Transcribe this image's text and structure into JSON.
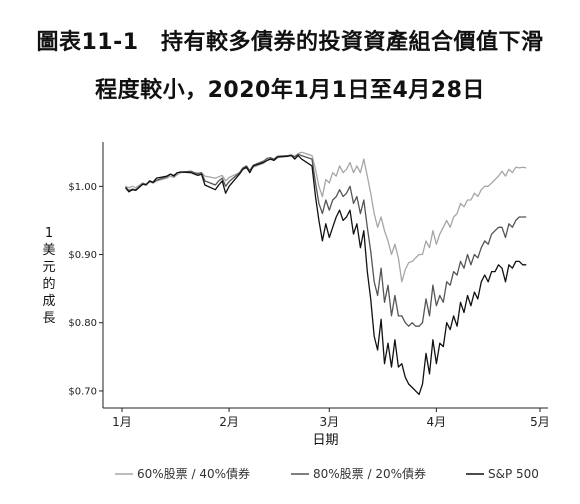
{
  "title": {
    "line1": "圖表11-1　持有較多債券的投資資產組合價值下滑",
    "line2": "程度較小，2020年1月1日至4月28日"
  },
  "chart_data": {
    "type": "line",
    "xlabel": "日期",
    "ylabel": "1美元的成長",
    "xlim": [
      0,
      119
    ],
    "ylim": [
      0.675,
      1.065
    ],
    "x_ticks": [
      {
        "pos": 0,
        "label": "1月"
      },
      {
        "pos": 31,
        "label": "2月"
      },
      {
        "pos": 60,
        "label": "3月"
      },
      {
        "pos": 91,
        "label": "4月"
      },
      {
        "pos": 121,
        "label": "5月"
      }
    ],
    "y_ticks": [
      {
        "value": 1.0,
        "label": "$1.00"
      },
      {
        "value": 0.9,
        "label": "$0.90"
      },
      {
        "value": 0.8,
        "label": "$0.80"
      },
      {
        "value": 0.7,
        "label": "$0.70"
      }
    ],
    "grid": false,
    "legend_position": "bottom",
    "series": [
      {
        "name": "60%股票 / 40%債券",
        "color": "#a6a6a6",
        "x": [
          1,
          2,
          3,
          4,
          6,
          7,
          8,
          9,
          10,
          13,
          14,
          15,
          16,
          17,
          20,
          21,
          22,
          23,
          24,
          27,
          28,
          29,
          30,
          31,
          34,
          35,
          36,
          37,
          38,
          41,
          42,
          43,
          44,
          45,
          48,
          49,
          50,
          51,
          52,
          55,
          56,
          57,
          58,
          59,
          60,
          61,
          62,
          63,
          64,
          65,
          66,
          67,
          68,
          69,
          70,
          71,
          72,
          73,
          74,
          75,
          76,
          77,
          78,
          79,
          80,
          81,
          82,
          83,
          84,
          85,
          86,
          87,
          88,
          89,
          90,
          91,
          92,
          93,
          94,
          95,
          96,
          97,
          98,
          99,
          100,
          101,
          102,
          103,
          104,
          105,
          106,
          107,
          108,
          109,
          110,
          111,
          112,
          113,
          114,
          115,
          116,
          117
        ],
        "y": [
          1.0,
          0.998,
          1.0,
          0.998,
          1.005,
          1.003,
          1.006,
          1.005,
          1.008,
          1.012,
          1.015,
          1.013,
          1.017,
          1.02,
          1.022,
          1.019,
          1.018,
          1.02,
          1.015,
          1.012,
          1.014,
          1.016,
          1.008,
          1.013,
          1.02,
          1.025,
          1.027,
          1.022,
          1.028,
          1.034,
          1.038,
          1.04,
          1.038,
          1.042,
          1.045,
          1.046,
          1.044,
          1.048,
          1.05,
          1.045,
          1.025,
          1.0,
          0.985,
          1.01,
          1.005,
          1.02,
          1.015,
          1.03,
          1.02,
          1.025,
          1.035,
          1.02,
          1.03,
          1.02,
          1.04,
          1.015,
          0.99,
          0.96,
          0.94,
          0.955,
          0.935,
          0.92,
          0.9,
          0.915,
          0.895,
          0.86,
          0.878,
          0.888,
          0.89,
          0.895,
          0.9,
          0.9,
          0.92,
          0.91,
          0.935,
          0.915,
          0.93,
          0.94,
          0.95,
          0.94,
          0.955,
          0.96,
          0.975,
          0.97,
          0.98,
          0.98,
          0.99,
          0.985,
          0.995,
          1.0,
          1.0,
          1.005,
          1.01,
          1.015,
          1.022,
          1.015,
          1.025,
          1.02,
          1.028,
          1.027,
          1.028,
          1.027
        ]
      },
      {
        "name": "80%股票 / 20%債券",
        "color": "#555555",
        "x": [
          1,
          2,
          3,
          4,
          6,
          7,
          8,
          9,
          10,
          13,
          14,
          15,
          16,
          17,
          20,
          21,
          22,
          23,
          24,
          27,
          28,
          29,
          30,
          31,
          34,
          35,
          36,
          37,
          38,
          41,
          42,
          43,
          44,
          45,
          48,
          49,
          50,
          51,
          52,
          55,
          56,
          57,
          58,
          59,
          60,
          61,
          62,
          63,
          64,
          65,
          66,
          67,
          68,
          69,
          70,
          71,
          72,
          73,
          74,
          75,
          76,
          77,
          78,
          79,
          80,
          81,
          82,
          83,
          84,
          85,
          86,
          87,
          88,
          89,
          90,
          91,
          92,
          93,
          94,
          95,
          96,
          97,
          98,
          99,
          100,
          101,
          102,
          103,
          104,
          105,
          106,
          107,
          108,
          109,
          110,
          111,
          112,
          113,
          114,
          115,
          116,
          117
        ],
        "y": [
          0.999,
          0.994,
          0.996,
          0.995,
          1.004,
          1.003,
          1.008,
          1.005,
          1.009,
          1.014,
          1.018,
          1.016,
          1.02,
          1.021,
          1.022,
          1.02,
          1.019,
          1.02,
          1.008,
          1.002,
          1.008,
          1.012,
          1.0,
          1.007,
          1.02,
          1.027,
          1.03,
          1.023,
          1.031,
          1.037,
          1.041,
          1.042,
          1.04,
          1.044,
          1.045,
          1.046,
          1.043,
          1.047,
          1.045,
          1.04,
          1.005,
          0.975,
          0.96,
          0.98,
          0.965,
          0.98,
          0.985,
          0.995,
          0.985,
          0.99,
          1.0,
          0.975,
          0.985,
          0.96,
          0.98,
          0.94,
          0.905,
          0.86,
          0.84,
          0.88,
          0.83,
          0.855,
          0.81,
          0.84,
          0.81,
          0.81,
          0.8,
          0.795,
          0.8,
          0.795,
          0.795,
          0.8,
          0.835,
          0.81,
          0.855,
          0.825,
          0.84,
          0.83,
          0.86,
          0.855,
          0.875,
          0.87,
          0.89,
          0.88,
          0.9,
          0.885,
          0.9,
          0.895,
          0.91,
          0.92,
          0.915,
          0.93,
          0.935,
          0.94,
          0.94,
          0.925,
          0.945,
          0.94,
          0.95,
          0.955,
          0.955,
          0.955
        ]
      },
      {
        "name": "S&P 500",
        "color": "#111111",
        "x": [
          1,
          2,
          3,
          4,
          6,
          7,
          8,
          9,
          10,
          13,
          14,
          15,
          16,
          17,
          20,
          21,
          22,
          23,
          24,
          27,
          28,
          29,
          30,
          31,
          34,
          35,
          36,
          37,
          38,
          41,
          42,
          43,
          44,
          45,
          48,
          49,
          50,
          51,
          52,
          55,
          56,
          57,
          58,
          59,
          60,
          61,
          62,
          63,
          64,
          65,
          66,
          67,
          68,
          69,
          70,
          71,
          72,
          73,
          74,
          75,
          76,
          77,
          78,
          79,
          80,
          81,
          82,
          83,
          84,
          85,
          86,
          87,
          88,
          89,
          90,
          91,
          92,
          93,
          94,
          95,
          96,
          97,
          98,
          99,
          100,
          101,
          102,
          103,
          104,
          105,
          106,
          107,
          108,
          109,
          110,
          111,
          112,
          113,
          114,
          115,
          116,
          117
        ],
        "y": [
          0.998,
          0.992,
          0.995,
          0.994,
          1.003,
          1.002,
          1.008,
          1.006,
          1.012,
          1.015,
          1.018,
          1.015,
          1.02,
          1.021,
          1.02,
          1.018,
          1.016,
          1.018,
          1.002,
          0.995,
          1.002,
          1.008,
          0.99,
          1.0,
          1.018,
          1.025,
          1.028,
          1.02,
          1.03,
          1.035,
          1.038,
          1.04,
          1.038,
          1.043,
          1.044,
          1.045,
          1.04,
          1.045,
          1.04,
          1.03,
          0.985,
          0.95,
          0.92,
          0.945,
          0.925,
          0.94,
          0.955,
          0.965,
          0.95,
          0.955,
          0.965,
          0.93,
          0.945,
          0.91,
          0.935,
          0.875,
          0.835,
          0.78,
          0.76,
          0.805,
          0.74,
          0.77,
          0.735,
          0.775,
          0.735,
          0.74,
          0.72,
          0.71,
          0.705,
          0.7,
          0.695,
          0.71,
          0.755,
          0.725,
          0.775,
          0.74,
          0.77,
          0.765,
          0.8,
          0.79,
          0.81,
          0.795,
          0.83,
          0.815,
          0.84,
          0.825,
          0.845,
          0.835,
          0.86,
          0.87,
          0.86,
          0.875,
          0.875,
          0.885,
          0.88,
          0.86,
          0.885,
          0.88,
          0.89,
          0.89,
          0.885,
          0.885
        ]
      }
    ]
  }
}
